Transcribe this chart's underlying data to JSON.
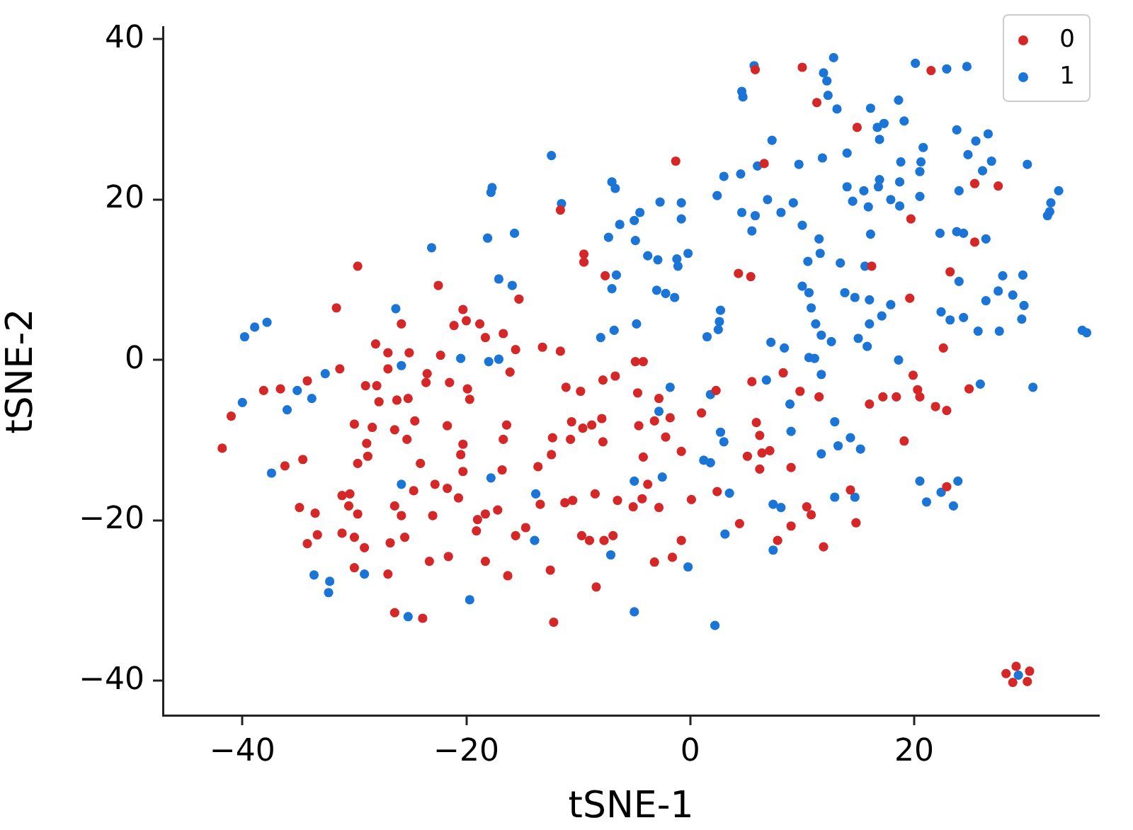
{
  "chart_data": {
    "type": "scatter",
    "xlabel": "tSNE-1",
    "ylabel": "tSNE-2",
    "xlim": [
      -47.1,
      36.5
    ],
    "ylim": [
      -44.3,
      41.5
    ],
    "xticks": [
      {
        "value": -40,
        "label": "−40"
      },
      {
        "value": -20,
        "label": "−20"
      },
      0,
      20
    ],
    "yticks": [
      {
        "value": -40,
        "label": "−40"
      },
      {
        "value": -20,
        "label": "−20"
      },
      0,
      20,
      40
    ],
    "grid": false,
    "legend": "top right",
    "marker": "circle",
    "series": [
      {
        "name": "0",
        "color": "#d62728",
        "x": [
          -29.7,
          -22.5,
          -31.6,
          -20.3,
          -20.0,
          -21.1,
          -25.8,
          -28.1,
          -27.0,
          -25.1,
          -22.3,
          -31.3,
          -27.0,
          -23.5,
          -34.2,
          -38.1,
          -36.6,
          -41.0,
          -41.8,
          -34.6,
          -36.2,
          -29.0,
          -28.0,
          -23.6,
          -21.5,
          -19.9,
          -19.7,
          -27.8,
          -26.2,
          -25.2,
          -30.0,
          -28.4,
          -26.4,
          -24.6,
          -21.7,
          -28.9,
          -25.3,
          -20.3,
          -28.8,
          -29.7,
          -20.5,
          -24.1,
          -20.3,
          -22.8,
          -24.7,
          -21.7,
          -20.7,
          -31.1,
          -30.4,
          -34.9,
          -30.5,
          -33.5,
          -29.7,
          -26.4,
          -25.8,
          -23.0,
          -33.3,
          -34.2,
          -31.1,
          -30.0,
          -29.1,
          -26.8,
          -25.5,
          -23.3,
          -21.6,
          -30.0,
          -27.0,
          -26.4,
          -23.9,
          5.8,
          -1.3,
          6.6,
          -11.6,
          -9.5,
          -9.5,
          -7.6,
          4.3,
          5.4,
          -15.3,
          -18.8,
          -18.3,
          -16.7,
          -15.6,
          -13.2,
          -11.6,
          -4.9,
          -4.2,
          -16.1,
          -11.1,
          -9.8,
          -7.8,
          -6.7,
          -4.7,
          -2.8,
          -1.8,
          -3.2,
          -4.6,
          -2.2,
          2.3,
          1.0,
          5.5,
          5.9,
          6.2,
          5.1,
          6.4,
          7.1,
          6.2,
          -0.8,
          -4.2,
          -3.8,
          2.4,
          0.1,
          -5.1,
          -4.3,
          -2.8,
          -6.5,
          -8.5,
          -11.2,
          -10.5,
          -13.4,
          -13.6,
          -12.4,
          -12.3,
          -10.7,
          -10.6,
          -9.6,
          -8.8,
          -7.9,
          -7.8,
          -16.4,
          -16.7,
          -16.8,
          -17.2,
          -18.3,
          -19.0,
          -19.1,
          -15.6,
          -14.7,
          -18.3,
          -16.3,
          -12.5,
          -9.7,
          -9.0,
          -7.7,
          -6.9,
          -8.4,
          -12.2,
          -3.2,
          -1.6,
          -0.8,
          4.4,
          7.8,
          8.3,
          10.0,
          11.3,
          21.5,
          14.9,
          25.4,
          19.7,
          25.4,
          27.5,
          16.2,
          23.2,
          19.6,
          22.6,
          9.8,
          11.5,
          16.0,
          17.2,
          18.4,
          19.9,
          20.3,
          20.5,
          21.9,
          22.9,
          24.9,
          19.1,
          9.0,
          22.9,
          14.3,
          10.4,
          10.8,
          9.0,
          14.8,
          11.9,
          29.1,
          28.2,
          30.3,
          28.8,
          30.1
        ],
        "values": [
          11.7,
          9.3,
          6.5,
          6.3,
          4.9,
          4.3,
          4.5,
          2.0,
          0.9,
          0.9,
          0.6,
          -1.1,
          -1.1,
          -1.7,
          -2.6,
          -3.8,
          -3.6,
          -7.0,
          -11.0,
          -12.4,
          -13.2,
          -3.2,
          -3.2,
          -2.8,
          -2.8,
          -3.6,
          -4.9,
          -5.2,
          -5.0,
          -4.8,
          -8.0,
          -8.4,
          -8.7,
          -7.6,
          -8.2,
          -10.4,
          -9.9,
          -10.5,
          -12.0,
          -12.9,
          -11.8,
          -12.9,
          -13.9,
          -15.5,
          -16.3,
          -16.0,
          -17.2,
          -16.9,
          -16.7,
          -18.4,
          -18.2,
          -19.1,
          -19.2,
          -18.2,
          -19.4,
          -19.4,
          -21.8,
          -22.9,
          -21.6,
          -22.1,
          -23.4,
          -22.8,
          -22.1,
          -25.1,
          -24.5,
          -25.9,
          -26.7,
          -31.5,
          -32.2,
          36.2,
          24.8,
          24.5,
          18.7,
          13.2,
          12.2,
          10.5,
          10.8,
          10.4,
          7.6,
          4.5,
          2.8,
          3.3,
          1.3,
          1.6,
          1.1,
          -0.2,
          -0.2,
          -1.5,
          -3.4,
          -3.9,
          -2.5,
          -2.0,
          -4.1,
          -4.8,
          -7.2,
          -7.6,
          -8.2,
          -9.6,
          -3.8,
          -6.6,
          -2.7,
          -7.8,
          -9.4,
          -12.0,
          -11.6,
          -11.3,
          -13.6,
          -11.4,
          -12.1,
          -15.5,
          -16.4,
          -17.4,
          -18.3,
          -17.3,
          -18.4,
          -17.5,
          -16.7,
          -17.8,
          -17.5,
          -18.0,
          -13.3,
          -11.8,
          -9.7,
          -9.9,
          -7.7,
          -8.5,
          -8.1,
          -7.3,
          -10.2,
          -8.1,
          -9.9,
          -13.7,
          -18.7,
          -19.2,
          -19.9,
          -21.3,
          -21.9,
          -20.9,
          -25.1,
          -26.9,
          -26.2,
          -21.9,
          -22.5,
          -22.5,
          -21.9,
          -28.3,
          -32.7,
          -25.2,
          -24.6,
          -22.5,
          -20.4,
          -22.5,
          -1.6,
          36.5,
          32.1,
          36.1,
          29.0,
          22.0,
          17.6,
          14.7,
          21.7,
          11.7,
          11.0,
          7.7,
          1.5,
          -3.9,
          -4.6,
          -5.5,
          -4.6,
          -4.6,
          -1.9,
          -3.7,
          -4.6,
          -5.8,
          -6.3,
          -3.6,
          -10.1,
          -13.4,
          -15.8,
          -16.2,
          -18.3,
          -19.3,
          -20.7,
          -20.3,
          -23.3,
          -38.2,
          -39.1,
          -38.8,
          -40.2,
          -40.1
        ]
      },
      {
        "name": "1",
        "color": "#1a75d6",
        "x": [
          -23.1,
          -26.3,
          -39.8,
          -38.9,
          -37.8,
          -20.5,
          -25.8,
          -32.6,
          -35.1,
          -33.8,
          -40.0,
          -36.0,
          -37.4,
          -25.8,
          -33.6,
          -32.2,
          -32.3,
          -29.1,
          -19.7,
          -25.2,
          5.7,
          4.6,
          4.7,
          7.3,
          6.0,
          3.0,
          4.5,
          -12.4,
          -7.0,
          -6.7,
          -17.7,
          -17.8,
          -11.5,
          2.4,
          6.9,
          8.1,
          4.6,
          5.8,
          5.5,
          -2.7,
          -0.8,
          -0.8,
          -4.5,
          -5.0,
          -6.3,
          -7.3,
          -4.9,
          -18.1,
          -15.7,
          -3.8,
          -2.9,
          -1.2,
          -1.1,
          -0.2,
          -6.6,
          -7.0,
          -17.1,
          -15.9,
          -3.0,
          -2.2,
          -1.4,
          2.7,
          2.6,
          2.5,
          1.5,
          -8.0,
          -6.8,
          -4.8,
          -18.0,
          -17.1,
          7.2,
          8.4,
          -1.8,
          -2.8,
          1.8,
          6.8,
          2.7,
          3.0,
          1.2,
          1.8,
          -5.0,
          -2.5,
          3.5,
          -13.8,
          -17.8,
          -13.9,
          -7.1,
          -5.0,
          -0.2,
          2.2,
          3.1,
          7.4,
          8.1,
          7.4,
          12.8,
          11.9,
          12.2,
          12.3,
          13.1,
          20.1,
          22.9,
          24.7,
          18.6,
          16.1,
          16.7,
          17.3,
          19.1,
          16.9,
          14.0,
          11.8,
          9.7,
          20.8,
          18.8,
          20.6,
          20.5,
          23.8,
          25.5,
          26.6,
          24.8,
          26.9,
          26.1,
          30.1,
          24.0,
          32.9,
          32.2,
          32.1,
          31.9,
          18.7,
          16.9,
          16.8,
          20.5,
          14.0,
          15.5,
          14.5,
          15.9,
          17.9,
          18.7,
          9.2,
          26.4,
          22.3,
          23.8,
          24.4,
          16.1,
          10.0,
          11.5,
          11.6,
          10.5,
          13.4,
          15.6,
          24.0,
          27.9,
          29.7,
          27.5,
          28.8,
          26.4,
          29.8,
          29.6,
          22.4,
          23.2,
          24.4,
          25.7,
          27.6,
          35.0,
          35.4,
          10.0,
          10.6,
          10.8,
          13.8,
          14.7,
          16.0,
          17.9,
          17.1,
          16.0,
          11.2,
          11.7,
          12.6,
          15.0,
          15.8,
          10.6,
          11.1,
          18.6,
          11.7,
          8.9,
          25.9,
          30.6,
          12.9,
          9.0,
          14.3,
          13.2,
          15.2,
          11.7,
          20.5,
          23.9,
          22.4,
          21.1,
          23.5,
          12.9,
          14.7,
          29.3
        ],
        "values": [
          14.0,
          6.4,
          2.9,
          4.1,
          4.7,
          0.2,
          -0.7,
          -1.7,
          -3.8,
          -4.8,
          -5.3,
          -6.2,
          -14.1,
          -15.5,
          -26.8,
          -27.6,
          -29.0,
          -26.7,
          -29.9,
          -32.0,
          36.7,
          33.5,
          32.8,
          27.4,
          24.2,
          22.9,
          23.2,
          25.5,
          22.2,
          21.4,
          21.5,
          20.9,
          19.5,
          20.5,
          20.0,
          18.4,
          18.4,
          18.0,
          16.1,
          19.7,
          19.6,
          17.6,
          18.4,
          17.4,
          16.9,
          15.3,
          14.9,
          15.2,
          15.8,
          13.0,
          12.5,
          12.6,
          11.7,
          13.3,
          10.6,
          8.9,
          10.1,
          9.3,
          8.7,
          8.3,
          7.8,
          6.2,
          4.8,
          3.8,
          2.9,
          2.8,
          3.7,
          4.5,
          -0.2,
          0.1,
          2.2,
          1.5,
          -3.4,
          -6.4,
          -4.3,
          -2.5,
          -9.0,
          -10.2,
          -12.5,
          -12.8,
          -15.1,
          -14.6,
          -16.6,
          -16.7,
          -14.7,
          -22.5,
          -24.3,
          -31.4,
          -25.8,
          -33.1,
          -21.7,
          -18.0,
          -18.4,
          -23.7,
          37.7,
          35.8,
          34.8,
          33.0,
          31.3,
          37.0,
          36.3,
          36.6,
          32.4,
          31.4,
          29.0,
          29.5,
          29.8,
          27.5,
          25.8,
          25.2,
          24.4,
          26.5,
          24.7,
          24.7,
          23.5,
          28.7,
          27.3,
          28.2,
          25.6,
          24.8,
          23.6,
          24.4,
          21.1,
          21.1,
          19.6,
          18.5,
          18.0,
          22.2,
          22.5,
          21.6,
          20.4,
          21.6,
          21.1,
          19.8,
          19.1,
          20.0,
          19.2,
          19.6,
          15.1,
          15.8,
          16.0,
          15.8,
          15.7,
          16.8,
          15.1,
          13.3,
          12.3,
          12.1,
          11.7,
          9.8,
          10.5,
          10.6,
          8.6,
          8.1,
          7.4,
          6.8,
          5.1,
          6.0,
          5.0,
          5.3,
          3.6,
          3.6,
          3.7,
          3.4,
          9.2,
          8.4,
          6.5,
          8.4,
          7.8,
          7.5,
          6.9,
          5.5,
          4.5,
          4.5,
          3.1,
          2.3,
          2.7,
          1.7,
          0.3,
          0.2,
          0.0,
          -1.8,
          -5.5,
          -3.0,
          -3.4,
          -7.7,
          -8.9,
          -9.7,
          -10.7,
          -11.1,
          -11.7,
          -15.1,
          -15.1,
          -16.5,
          -17.7,
          -18.2,
          -17.1,
          -17.1,
          -39.3
        ]
      }
    ]
  }
}
